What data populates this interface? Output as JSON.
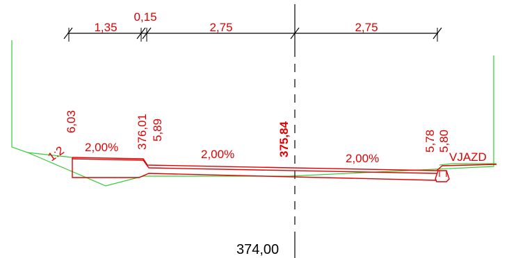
{
  "colors": {
    "line_black": "#000000",
    "pavement_red": "#e00000",
    "terrain_green": "#33cc33",
    "text_red": "#e00000",
    "text_black": "#000000"
  },
  "dimensions": {
    "d1": "1,35",
    "d2": "0,15",
    "d3": "2,75",
    "d4": "2,75"
  },
  "labels": {
    "slope_left": "1:2",
    "grade_1": "2,00%",
    "grade_2": "2,00%",
    "grade_3": "2,00%",
    "elev_left_top": "6,03",
    "elev_376": "376,01",
    "elev_589": "5,89",
    "elev_axis": "375,84",
    "elev_578": "5,78",
    "elev_580": "5,80",
    "entry": "VJAZD",
    "datum": "374,00"
  }
}
